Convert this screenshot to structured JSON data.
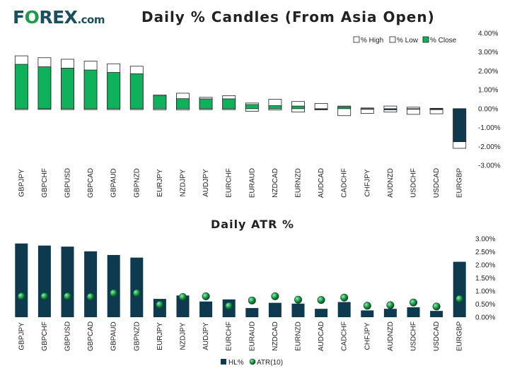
{
  "brand": {
    "name_prefix": "F",
    "name_ring": "O",
    "name_rest": "REX",
    "suffix": ".com"
  },
  "colors": {
    "bull": "#0fb25b",
    "bear": "#0e3a4f",
    "atr_marker": "#1e9b4b",
    "text": "#222222"
  },
  "chart_data": [
    {
      "type": "bar",
      "title": "Daily % Candles (From Asia Open)",
      "categories": [
        "GBPJPY",
        "GBPCHF",
        "GBPUSD",
        "GBPCAD",
        "GBPAUD",
        "GBPNZD",
        "EURJPY",
        "NZDJPY",
        "AUDJPY",
        "EURCHF",
        "EURAUD",
        "NZDCAD",
        "EURNZD",
        "AUDCAD",
        "CADCHF",
        "CHFJPY",
        "AUDNZD",
        "USDCHF",
        "USDCAD",
        "EURGBP"
      ],
      "series": [
        {
          "name": "% High",
          "values": [
            2.8,
            2.7,
            2.62,
            2.52,
            2.38,
            2.25,
            0.73,
            0.82,
            0.6,
            0.69,
            0.3,
            0.5,
            0.38,
            0.28,
            0.14,
            0.04,
            0.14,
            0.08,
            0.02,
            0.0
          ]
        },
        {
          "name": "% Low",
          "values": [
            -0.05,
            -0.04,
            -0.05,
            -0.05,
            -0.05,
            -0.05,
            -0.06,
            -0.06,
            -0.05,
            -0.05,
            -0.14,
            -0.07,
            -0.18,
            -0.06,
            -0.37,
            -0.25,
            -0.18,
            -0.3,
            -0.27,
            -2.1
          ]
        },
        {
          "name": "% Close",
          "values": [
            2.35,
            2.22,
            2.15,
            2.05,
            1.92,
            1.85,
            0.68,
            0.53,
            0.52,
            0.52,
            0.22,
            0.16,
            0.14,
            0.0,
            0.1,
            -0.02,
            -0.06,
            -0.02,
            -0.05,
            -1.75
          ]
        }
      ],
      "legend": [
        "% High",
        "% Low",
        "% Close"
      ],
      "legend_position": "top-right",
      "ylim": [
        -3,
        4
      ],
      "yticks": [
        4,
        3,
        2,
        1,
        0,
        -1,
        -2,
        -3
      ],
      "ytick_labels": [
        "4.00%",
        "3.00%",
        "2.00%",
        "1.00%",
        "0.00%",
        "-1.00%",
        "-2.00%",
        "-3.00%"
      ]
    },
    {
      "type": "bar",
      "title": "Daily ATR %",
      "categories": [
        "GBPJPY",
        "GBPCHF",
        "GBPUSD",
        "GBPCAD",
        "GBPAUD",
        "GBPNZD",
        "EURJPY",
        "NZDJPY",
        "AUDJPY",
        "EURCHF",
        "EURAUD",
        "NZDCAD",
        "EURNZD",
        "AUDCAD",
        "CADCHF",
        "CHFJPY",
        "AUDNZD",
        "USDCHF",
        "USDCAD",
        "EURGBP"
      ],
      "series": [
        {
          "name": "HL%",
          "values": [
            2.82,
            2.74,
            2.7,
            2.52,
            2.38,
            2.28,
            0.7,
            0.83,
            0.6,
            0.68,
            0.35,
            0.55,
            0.52,
            0.32,
            0.58,
            0.26,
            0.32,
            0.38,
            0.24,
            2.12
          ]
        },
        {
          "name": "ATR(10)",
          "values": [
            0.8,
            0.8,
            0.8,
            0.78,
            0.92,
            0.92,
            0.48,
            0.77,
            0.8,
            0.43,
            0.64,
            0.8,
            0.67,
            0.66,
            0.75,
            0.44,
            0.46,
            0.56,
            0.41,
            0.7
          ]
        }
      ],
      "legend": [
        "HL%",
        "ATR(10)"
      ],
      "legend_position": "bottom",
      "ylim": [
        0,
        3
      ],
      "yticks": [
        3,
        2.5,
        2,
        1.5,
        1,
        0.5,
        0
      ],
      "ytick_labels": [
        "3.00%",
        "2.50%",
        "2.00%",
        "1.50%",
        "1.00%",
        "0.50%",
        "0.00%"
      ]
    }
  ]
}
